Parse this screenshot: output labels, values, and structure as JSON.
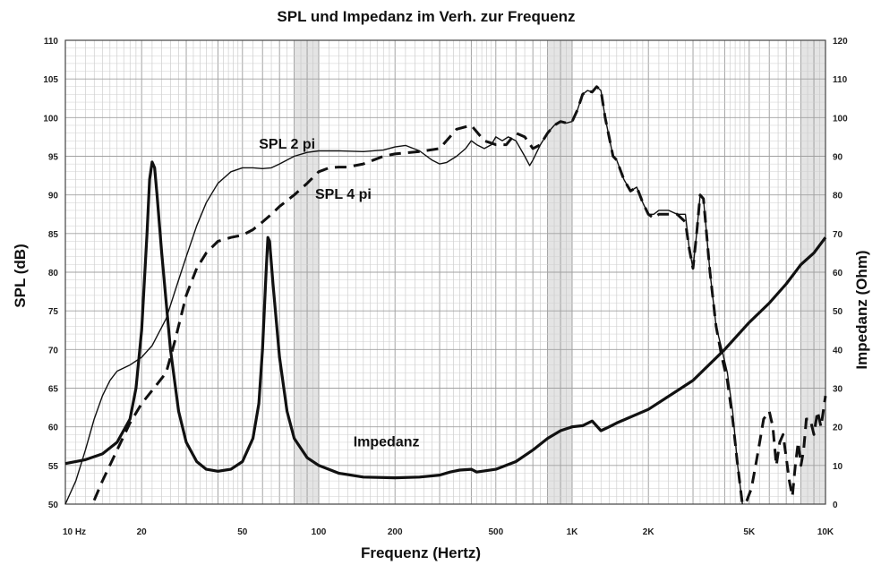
{
  "chart_data": {
    "type": "line",
    "title": "SPL und Impedanz im Verh. zur Frequenz",
    "xlabel": "Frequenz (Hertz)",
    "ylabel": "SPL (dB)",
    "y2label": "Impedanz (Ohm)",
    "x_scale": "log",
    "xlim": [
      10,
      10000
    ],
    "ylim": [
      50,
      110
    ],
    "y2lim": [
      0,
      120
    ],
    "grid": true,
    "legend": "none",
    "x_ticks": [
      {
        "value": 10,
        "label": "10 Hz"
      },
      {
        "value": 20,
        "label": "20"
      },
      {
        "value": 50,
        "label": "50"
      },
      {
        "value": 100,
        "label": "100"
      },
      {
        "value": 200,
        "label": "200"
      },
      {
        "value": 500,
        "label": "500"
      },
      {
        "value": 1000,
        "label": "1K"
      },
      {
        "value": 2000,
        "label": "2K"
      },
      {
        "value": 5000,
        "label": "5K"
      },
      {
        "value": 10000,
        "label": "10K"
      }
    ],
    "y_ticks": [
      "50",
      "55",
      "60",
      "65",
      "70",
      "75",
      "80",
      "85",
      "90",
      "95",
      "100",
      "105",
      "110"
    ],
    "y2_ticks": [
      "0",
      "10",
      "20",
      "30",
      "40",
      "50",
      "60",
      "70",
      "80",
      "90",
      "100",
      "110",
      "120"
    ],
    "series": [
      {
        "name": "SPL 2 pi",
        "axis": "left",
        "style": "solid-thin",
        "points": [
          [
            10,
            50
          ],
          [
            11,
            53
          ],
          [
            12,
            57
          ],
          [
            13,
            61
          ],
          [
            14,
            64
          ],
          [
            15,
            66
          ],
          [
            16,
            67.2
          ],
          [
            18,
            68
          ],
          [
            20,
            69
          ],
          [
            22,
            70.5
          ],
          [
            25,
            74
          ],
          [
            28,
            79
          ],
          [
            30,
            82
          ],
          [
            33,
            86
          ],
          [
            36,
            89
          ],
          [
            40,
            91.5
          ],
          [
            45,
            93
          ],
          [
            50,
            93.5
          ],
          [
            55,
            93.5
          ],
          [
            60,
            93.4
          ],
          [
            65,
            93.5
          ],
          [
            70,
            94
          ],
          [
            80,
            95
          ],
          [
            90,
            95.5
          ],
          [
            100,
            95.7
          ],
          [
            120,
            95.7
          ],
          [
            150,
            95.6
          ],
          [
            180,
            95.8
          ],
          [
            200,
            96.2
          ],
          [
            220,
            96.4
          ],
          [
            250,
            95.7
          ],
          [
            280,
            94.5
          ],
          [
            300,
            94
          ],
          [
            320,
            94.2
          ],
          [
            350,
            95
          ],
          [
            380,
            96
          ],
          [
            400,
            97
          ],
          [
            420,
            96.5
          ],
          [
            450,
            96
          ],
          [
            480,
            96.5
          ],
          [
            500,
            97.5
          ],
          [
            530,
            97
          ],
          [
            560,
            97.5
          ],
          [
            600,
            97
          ],
          [
            650,
            95
          ],
          [
            680,
            93.8
          ],
          [
            700,
            94.5
          ],
          [
            750,
            96.5
          ],
          [
            800,
            98
          ],
          [
            850,
            99
          ],
          [
            900,
            99.5
          ],
          [
            950,
            99.3
          ],
          [
            1000,
            99.5
          ],
          [
            1050,
            101
          ],
          [
            1100,
            103
          ],
          [
            1150,
            103.5
          ],
          [
            1200,
            103.3
          ],
          [
            1250,
            104
          ],
          [
            1300,
            103.5
          ],
          [
            1350,
            100
          ],
          [
            1450,
            95
          ],
          [
            1500,
            94.5
          ],
          [
            1600,
            92
          ],
          [
            1700,
            90.5
          ],
          [
            1800,
            91
          ],
          [
            1900,
            89
          ],
          [
            2000,
            87.5
          ],
          [
            2100,
            87.5
          ],
          [
            2200,
            88
          ],
          [
            2400,
            88
          ],
          [
            2600,
            87.5
          ],
          [
            2800,
            87.5
          ],
          [
            2900,
            83
          ],
          [
            3000,
            80.5
          ],
          [
            3100,
            85
          ],
          [
            3200,
            90
          ],
          [
            3300,
            89.5
          ],
          [
            3500,
            80
          ],
          [
            3700,
            73
          ],
          [
            3900,
            70
          ],
          [
            4100,
            67
          ],
          [
            4300,
            62
          ],
          [
            4500,
            55
          ],
          [
            4700,
            50
          ]
        ]
      },
      {
        "name": "SPL 4 pi",
        "axis": "left",
        "style": "dashed",
        "points": [
          [
            13,
            50.5
          ],
          [
            14,
            53
          ],
          [
            16,
            57
          ],
          [
            18,
            60.5
          ],
          [
            20,
            63
          ],
          [
            23,
            65.5
          ],
          [
            25,
            67
          ],
          [
            27,
            71
          ],
          [
            30,
            77
          ],
          [
            33,
            80.5
          ],
          [
            36,
            82.5
          ],
          [
            40,
            84
          ],
          [
            45,
            84.5
          ],
          [
            50,
            84.8
          ],
          [
            55,
            85.5
          ],
          [
            60,
            86.5
          ],
          [
            65,
            87.5
          ],
          [
            70,
            88.5
          ],
          [
            80,
            90
          ],
          [
            90,
            91.5
          ],
          [
            100,
            93
          ],
          [
            110,
            93.5
          ],
          [
            120,
            93.6
          ],
          [
            130,
            93.6
          ],
          [
            150,
            94
          ],
          [
            180,
            95
          ],
          [
            200,
            95.3
          ],
          [
            250,
            95.6
          ],
          [
            300,
            96
          ],
          [
            350,
            98.5
          ],
          [
            400,
            99
          ],
          [
            450,
            97
          ],
          [
            500,
            96.5
          ],
          [
            550,
            96.5
          ],
          [
            600,
            98
          ],
          [
            650,
            97.5
          ],
          [
            700,
            96
          ],
          [
            750,
            96.5
          ],
          [
            800,
            98
          ],
          [
            850,
            99
          ],
          [
            900,
            99.5
          ],
          [
            950,
            99.3
          ],
          [
            1000,
            99.5
          ],
          [
            1050,
            101
          ],
          [
            1100,
            103
          ],
          [
            1150,
            103.5
          ],
          [
            1200,
            103.3
          ],
          [
            1250,
            104
          ],
          [
            1300,
            103.5
          ],
          [
            1350,
            100
          ],
          [
            1450,
            95
          ],
          [
            1500,
            94.5
          ],
          [
            1600,
            92
          ],
          [
            1700,
            90.5
          ],
          [
            1800,
            91
          ],
          [
            1900,
            89
          ],
          [
            2000,
            87.5
          ],
          [
            2100,
            87
          ],
          [
            2200,
            87.5
          ],
          [
            2400,
            87.5
          ],
          [
            2600,
            87.5
          ],
          [
            2800,
            86.5
          ],
          [
            2900,
            83
          ],
          [
            3000,
            80.5
          ],
          [
            3100,
            85
          ],
          [
            3200,
            90
          ],
          [
            3300,
            89.5
          ],
          [
            3500,
            80
          ],
          [
            3700,
            73
          ],
          [
            3900,
            69
          ],
          [
            4100,
            66
          ],
          [
            4300,
            61
          ],
          [
            4500,
            55
          ],
          [
            4700,
            50
          ],
          [
            4900,
            50.5
          ],
          [
            5100,
            52
          ],
          [
            5300,
            55
          ],
          [
            5500,
            58
          ],
          [
            5700,
            61
          ],
          [
            6000,
            62
          ],
          [
            6200,
            60
          ],
          [
            6400,
            55
          ],
          [
            6600,
            58
          ],
          [
            6800,
            59
          ],
          [
            7000,
            56
          ],
          [
            7200,
            53
          ],
          [
            7400,
            51
          ],
          [
            7600,
            55
          ],
          [
            7800,
            58
          ],
          [
            8000,
            55
          ],
          [
            8200,
            57
          ],
          [
            8400,
            61
          ],
          [
            8700,
            61
          ],
          [
            9000,
            59
          ],
          [
            9300,
            62
          ],
          [
            9600,
            60
          ],
          [
            10000,
            64
          ]
        ]
      },
      {
        "name": "Impedanz",
        "axis": "right",
        "style": "solid-thick",
        "points": [
          [
            10,
            10.5
          ],
          [
            12,
            11.5
          ],
          [
            14,
            13
          ],
          [
            16,
            16
          ],
          [
            18,
            22
          ],
          [
            19,
            30
          ],
          [
            20,
            45
          ],
          [
            21,
            70
          ],
          [
            21.5,
            84
          ],
          [
            22,
            88.5
          ],
          [
            22.5,
            87
          ],
          [
            23,
            80
          ],
          [
            24,
            65
          ],
          [
            26,
            40
          ],
          [
            28,
            24
          ],
          [
            30,
            16
          ],
          [
            33,
            11
          ],
          [
            36,
            9
          ],
          [
            40,
            8.5
          ],
          [
            45,
            9
          ],
          [
            50,
            11
          ],
          [
            55,
            17
          ],
          [
            58,
            26
          ],
          [
            60,
            40
          ],
          [
            62,
            60
          ],
          [
            63,
            69
          ],
          [
            64,
            68
          ],
          [
            66,
            57
          ],
          [
            70,
            38
          ],
          [
            75,
            24
          ],
          [
            80,
            17
          ],
          [
            90,
            12
          ],
          [
            100,
            10
          ],
          [
            120,
            8
          ],
          [
            150,
            7
          ],
          [
            200,
            6.8
          ],
          [
            250,
            7
          ],
          [
            300,
            7.5
          ],
          [
            330,
            8.3
          ],
          [
            360,
            8.8
          ],
          [
            400,
            9
          ],
          [
            420,
            8.3
          ],
          [
            500,
            9
          ],
          [
            600,
            11
          ],
          [
            700,
            14
          ],
          [
            800,
            17
          ],
          [
            900,
            19
          ],
          [
            1000,
            20
          ],
          [
            1100,
            20.3
          ],
          [
            1200,
            21.5
          ],
          [
            1300,
            19
          ],
          [
            1400,
            20
          ],
          [
            1500,
            21
          ],
          [
            2000,
            24.5
          ],
          [
            3000,
            32
          ],
          [
            4000,
            40
          ],
          [
            5000,
            47
          ],
          [
            6000,
            52
          ],
          [
            7000,
            57
          ],
          [
            8000,
            62
          ],
          [
            9000,
            65
          ],
          [
            10000,
            69
          ]
        ]
      }
    ],
    "annotations": [
      {
        "text": "SPL 2 pi",
        "x": 75,
        "y": 96
      },
      {
        "text": "SPL 4 pi",
        "x": 125,
        "y": 89.5
      },
      {
        "text": "Impedanz",
        "x": 185,
        "y": 57.5
      }
    ]
  }
}
